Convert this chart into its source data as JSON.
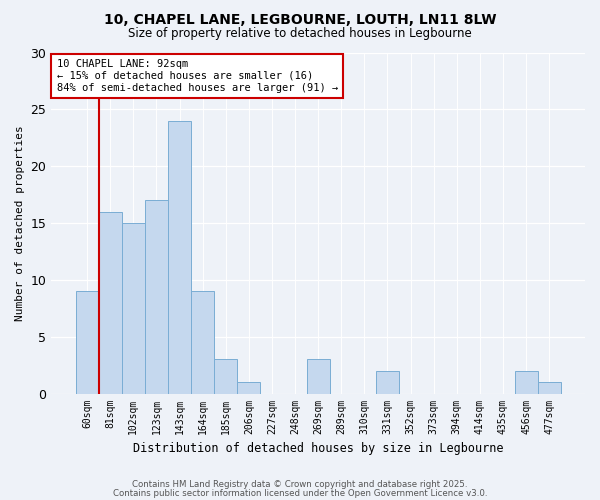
{
  "title1": "10, CHAPEL LANE, LEGBOURNE, LOUTH, LN11 8LW",
  "title2": "Size of property relative to detached houses in Legbourne",
  "xlabel": "Distribution of detached houses by size in Legbourne",
  "ylabel": "Number of detached properties",
  "categories": [
    "60sqm",
    "81sqm",
    "102sqm",
    "123sqm",
    "143sqm",
    "164sqm",
    "185sqm",
    "206sqm",
    "227sqm",
    "248sqm",
    "269sqm",
    "289sqm",
    "310sqm",
    "331sqm",
    "352sqm",
    "373sqm",
    "394sqm",
    "414sqm",
    "435sqm",
    "456sqm",
    "477sqm"
  ],
  "values": [
    9,
    16,
    15,
    17,
    24,
    9,
    3,
    1,
    0,
    0,
    3,
    0,
    0,
    2,
    0,
    0,
    0,
    0,
    0,
    2,
    1
  ],
  "bar_color": "#c5d8ee",
  "bar_edge_color": "#7aadd4",
  "red_line_color": "#cc0000",
  "annotation_box_color": "#ffffff",
  "annotation_box_edge": "#cc0000",
  "footer1": "Contains HM Land Registry data © Crown copyright and database right 2025.",
  "footer2": "Contains public sector information licensed under the Open Government Licence v3.0.",
  "ylim": [
    0,
    30
  ],
  "yticks": [
    0,
    5,
    10,
    15,
    20,
    25,
    30
  ],
  "background_color": "#eef2f8"
}
